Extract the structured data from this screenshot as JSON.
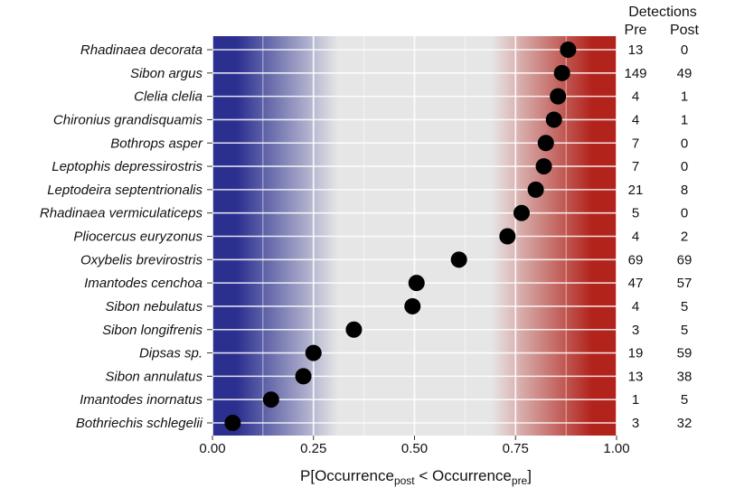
{
  "chart_data": {
    "type": "scatter",
    "title": "",
    "xlabel": {
      "main": "P[Occurrence",
      "sub1": "post",
      "mid": " < Occurrence",
      "sub2": "pre",
      "end": "]"
    },
    "xlim": [
      0,
      1
    ],
    "xticks": [
      "0.00",
      "0.25",
      "0.50",
      "0.75",
      "1.00"
    ],
    "grid": true,
    "background": {
      "low_color": "#2b2f8f",
      "mid_color": "#e6e6e6",
      "high_color": "#b2231c"
    },
    "point_color": "#000000",
    "detections_header": "Detections",
    "pre_header": "Pre",
    "post_header": "Post",
    "species": [
      {
        "name": "Rhadinaea decorata",
        "x": 0.88,
        "pre": "13",
        "post": "0"
      },
      {
        "name": "Sibon argus",
        "x": 0.865,
        "pre": "149",
        "post": "49"
      },
      {
        "name": "Clelia clelia",
        "x": 0.855,
        "pre": "4",
        "post": "1"
      },
      {
        "name": "Chironius grandisquamis",
        "x": 0.845,
        "pre": "4",
        "post": "1"
      },
      {
        "name": "Bothrops asper",
        "x": 0.825,
        "pre": "7",
        "post": "0"
      },
      {
        "name": "Leptophis depressirostris",
        "x": 0.82,
        "pre": "7",
        "post": "0"
      },
      {
        "name": "Leptodeira septentrionalis",
        "x": 0.8,
        "pre": "21",
        "post": "8"
      },
      {
        "name": "Rhadinaea vermiculaticeps",
        "x": 0.765,
        "pre": "5",
        "post": "0"
      },
      {
        "name": "Pliocercus euryzonus",
        "x": 0.73,
        "pre": "4",
        "post": "2"
      },
      {
        "name": "Oxybelis brevirostris",
        "x": 0.61,
        "pre": "69",
        "post": "69"
      },
      {
        "name": "Imantodes cenchoa",
        "x": 0.505,
        "pre": "47",
        "post": "57"
      },
      {
        "name": "Sibon nebulatus",
        "x": 0.495,
        "pre": "4",
        "post": "5"
      },
      {
        "name": "Sibon longifrenis",
        "x": 0.35,
        "pre": "3",
        "post": "5"
      },
      {
        "name": "Dipsas sp.",
        "x": 0.25,
        "pre": "19",
        "post": "59"
      },
      {
        "name": "Sibon annulatus",
        "x": 0.225,
        "pre": "13",
        "post": "38"
      },
      {
        "name": "Imantodes inornatus",
        "x": 0.145,
        "pre": "1",
        "post": "5"
      },
      {
        "name": "Bothriechis schlegelii",
        "x": 0.05,
        "pre": "3",
        "post": "32"
      }
    ]
  }
}
